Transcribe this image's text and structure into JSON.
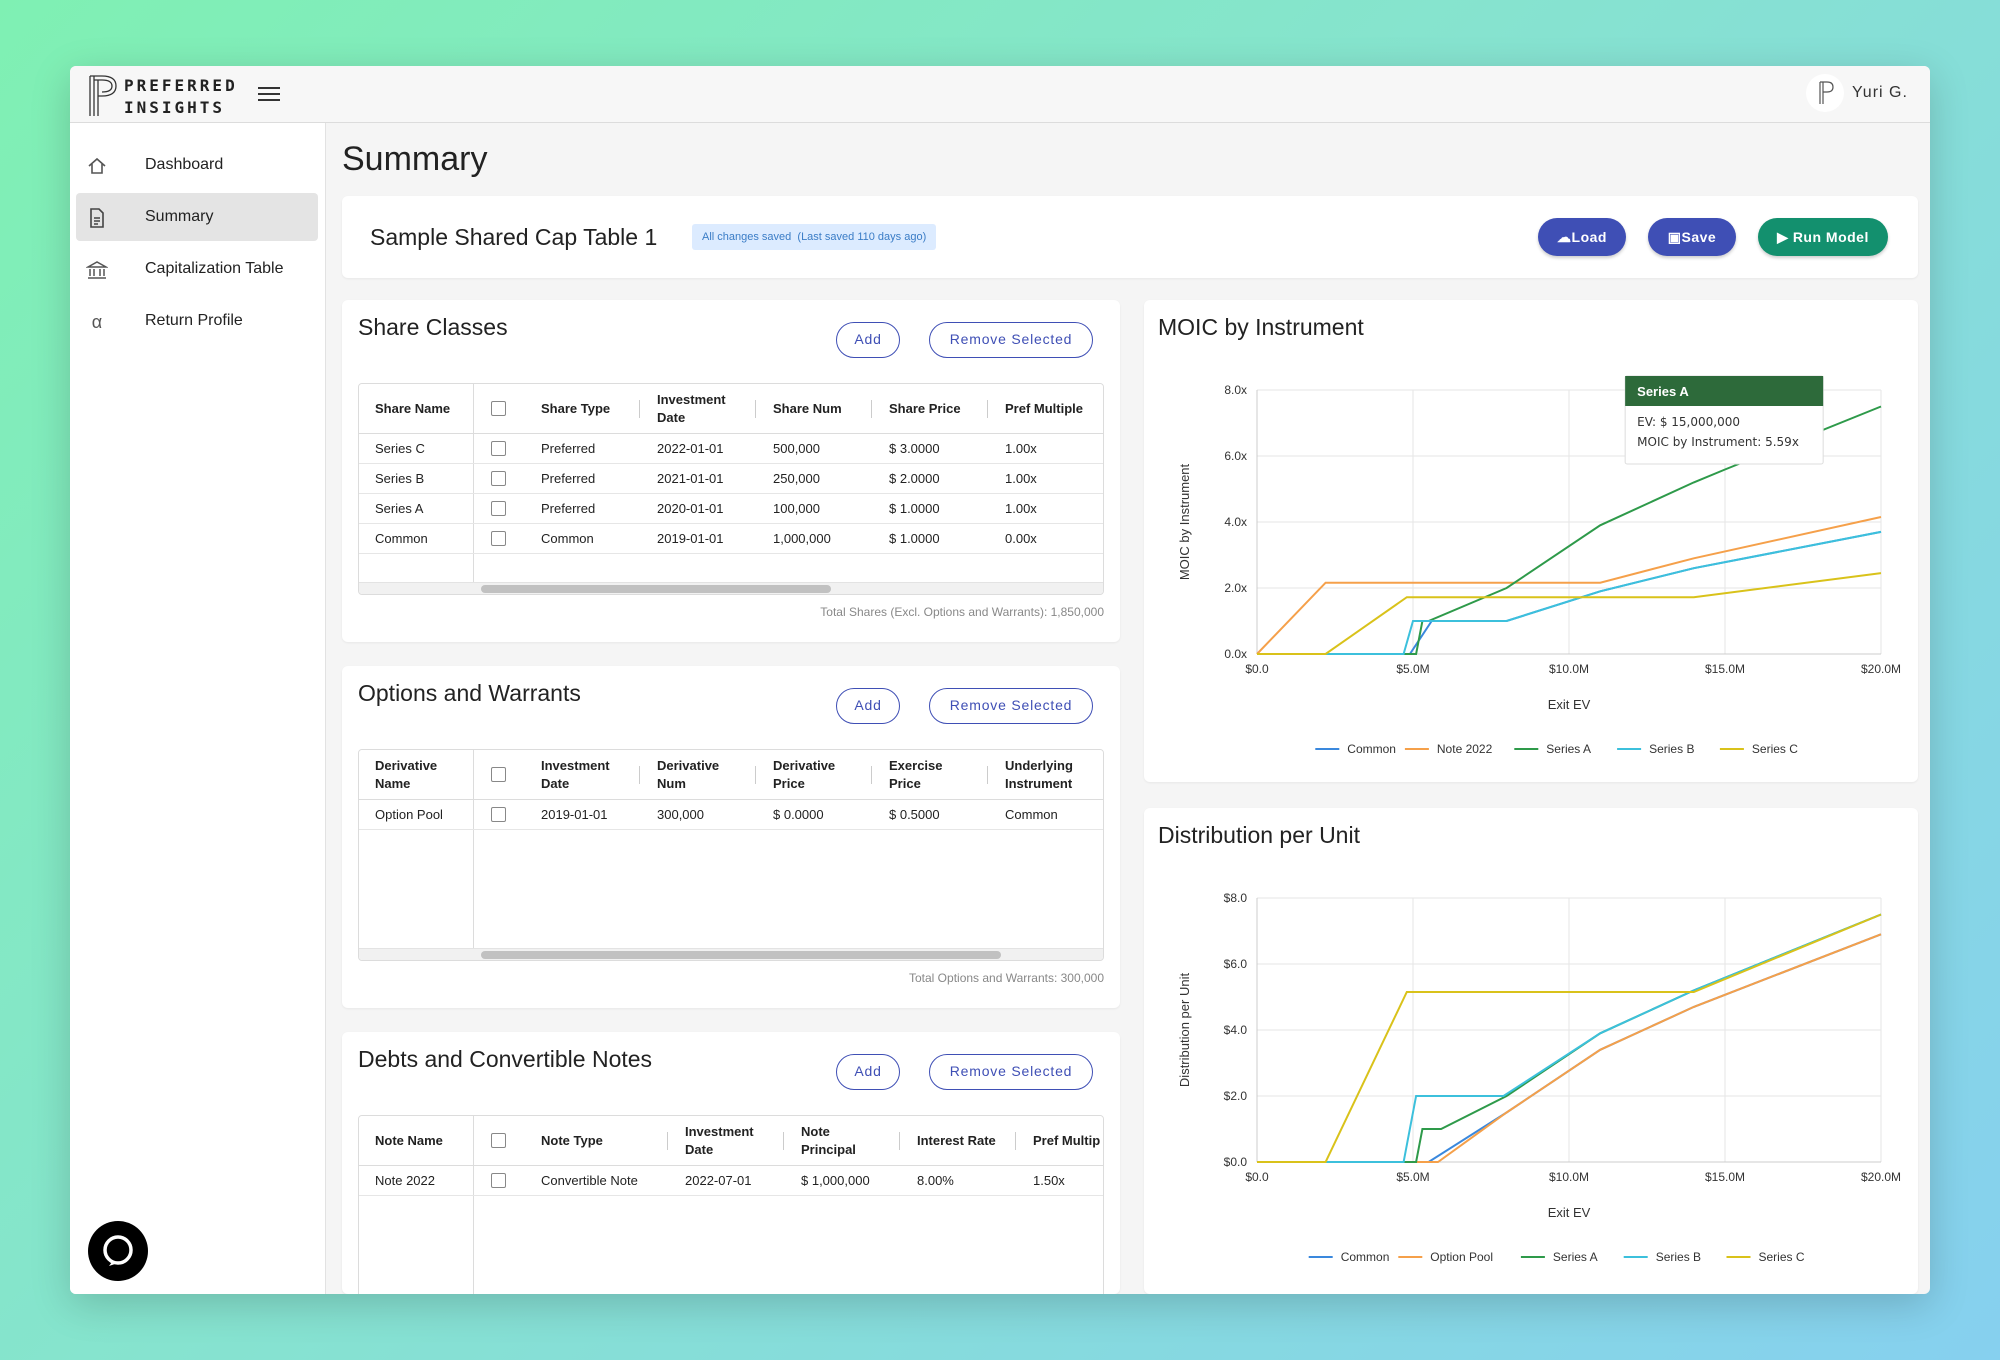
{
  "brand": {
    "line1": "PREFERRED",
    "line2": "INSIGHTS"
  },
  "user": {
    "name": "Yuri G."
  },
  "sidebar": {
    "items": [
      {
        "label": "Dashboard",
        "icon": "home-icon"
      },
      {
        "label": "Summary",
        "icon": "document-icon",
        "active": true
      },
      {
        "label": "Capitalization Table",
        "icon": "bank-icon"
      },
      {
        "label": "Return Profile",
        "icon": "alpha-icon"
      }
    ]
  },
  "page": {
    "title": "Summary"
  },
  "header": {
    "doc_name": "Sample Shared Cap Table 1",
    "save_status": "All changes saved",
    "last_saved": "(Last saved 110 days ago)",
    "load_label": "Load",
    "save_label": "Save",
    "run_label": "Run Model"
  },
  "share_classes": {
    "title": "Share Classes",
    "add_label": "Add",
    "remove_label": "Remove Selected",
    "columns": [
      "Share Name",
      "Share Type",
      "Investment Date",
      "Share Num",
      "Share Price",
      "Pref Multiple"
    ],
    "rows": [
      [
        "Series C",
        "Preferred",
        "2022-01-01",
        "500,000",
        "$ 3.0000",
        "1.00x"
      ],
      [
        "Series B",
        "Preferred",
        "2021-01-01",
        "250,000",
        "$ 2.0000",
        "1.00x"
      ],
      [
        "Series A",
        "Preferred",
        "2020-01-01",
        "100,000",
        "$ 1.0000",
        "1.00x"
      ],
      [
        "Common",
        "Common",
        "2019-01-01",
        "1,000,000",
        "$ 1.0000",
        "0.00x"
      ]
    ],
    "footnote": "Total Shares (Excl. Options and Warrants): 1,850,000"
  },
  "options": {
    "title": "Options and Warrants",
    "add_label": "Add",
    "remove_label": "Remove Selected",
    "columns": [
      "Derivative Name",
      "Investment Date",
      "Derivative Num",
      "Derivative Price",
      "Exercise Price",
      "Underlying Instrument"
    ],
    "rows": [
      [
        "Option Pool",
        "2019-01-01",
        "300,000",
        "$ 0.0000",
        "$ 0.5000",
        "Common"
      ]
    ],
    "footnote": "Total Options and Warrants: 300,000"
  },
  "debts": {
    "title": "Debts and Convertible Notes",
    "add_label": "Add",
    "remove_label": "Remove Selected",
    "columns": [
      "Note Name",
      "Note Type",
      "Investment Date",
      "Note Principal",
      "Interest Rate",
      "Pref Multip"
    ],
    "rows": [
      [
        "Note 2022",
        "Convertible Note",
        "2022-07-01",
        "$ 1,000,000",
        "8.00%",
        "1.50x"
      ]
    ]
  },
  "colors": {
    "primary": "#3f4fb5",
    "run": "#13906e",
    "common": "#3a88dd",
    "orange": "#f5a04a",
    "green": "#2e9a4a",
    "cyan": "#3cc0dc",
    "yellow": "#d9c21a",
    "tooltip_header": "#2d6a3a"
  },
  "chart_data": [
    {
      "type": "line",
      "title": "MOIC by Instrument",
      "xlabel": "Exit EV",
      "ylabel": "MOIC by Instrument",
      "xlim": [
        0,
        20
      ],
      "ylim": [
        0,
        8
      ],
      "x_ticks": [
        "$0.0",
        "$5.0M",
        "$10.0M",
        "$15.0M",
        "$20.0M"
      ],
      "y_ticks": [
        "0.0x",
        "2.0x",
        "4.0x",
        "6.0x",
        "8.0x"
      ],
      "grid": true,
      "legend": "bottom",
      "series": [
        {
          "name": "Common",
          "color": "#3a88dd",
          "points": [
            [
              0,
              0
            ],
            [
              4.9,
              0
            ],
            [
              5.6,
              1.0
            ],
            [
              8,
              1.0
            ],
            [
              11,
              1.9
            ],
            [
              14,
              2.6
            ],
            [
              20,
              3.7
            ]
          ]
        },
        {
          "name": "Note 2022",
          "color": "#f5a04a",
          "points": [
            [
              0,
              0
            ],
            [
              2.2,
              2.16
            ],
            [
              11,
              2.16
            ],
            [
              14,
              2.9
            ],
            [
              20,
              4.15
            ]
          ]
        },
        {
          "name": "Series A",
          "color": "#2e9a4a",
          "points": [
            [
              0,
              0
            ],
            [
              5.1,
              0
            ],
            [
              5.3,
              1.0
            ],
            [
              5.5,
              1.0
            ],
            [
              8,
              2.0
            ],
            [
              11,
              3.9
            ],
            [
              14,
              5.2
            ],
            [
              15,
              5.59
            ],
            [
              20,
              7.5
            ]
          ]
        },
        {
          "name": "Series B",
          "color": "#3cc0dc",
          "points": [
            [
              0,
              0
            ],
            [
              4.7,
              0
            ],
            [
              5.0,
              1.0
            ],
            [
              8,
              1.0
            ],
            [
              11,
              1.9
            ],
            [
              14,
              2.6
            ],
            [
              20,
              3.7
            ]
          ]
        },
        {
          "name": "Series C",
          "color": "#d9c21a",
          "points": [
            [
              0,
              0
            ],
            [
              2.2,
              0
            ],
            [
              4.8,
              1.72
            ],
            [
              14,
              1.72
            ],
            [
              20,
              2.45
            ]
          ]
        }
      ],
      "tooltip": {
        "title": "Series A",
        "line1": "EV: $ 15,000,000",
        "line2": "MOIC by Instrument: 5.59x"
      }
    },
    {
      "type": "line",
      "title": "Distribution per Unit",
      "xlabel": "Exit EV",
      "ylabel": "Distribution per Unit",
      "xlim": [
        0,
        20
      ],
      "ylim": [
        0,
        8
      ],
      "x_ticks": [
        "$0.0",
        "$5.0M",
        "$10.0M",
        "$15.0M",
        "$20.0M"
      ],
      "y_ticks": [
        "$0.0",
        "$2.0",
        "$4.0",
        "$6.0",
        "$8.0"
      ],
      "grid": true,
      "legend": "bottom",
      "series": [
        {
          "name": "Common",
          "color": "#3a88dd",
          "points": [
            [
              0,
              0
            ],
            [
              5.5,
              0
            ],
            [
              8,
              1.5
            ],
            [
              11,
              3.4
            ],
            [
              14,
              4.7
            ],
            [
              20,
              6.9
            ]
          ]
        },
        {
          "name": "Option Pool",
          "color": "#f5a04a",
          "points": [
            [
              0,
              0
            ],
            [
              5.8,
              0
            ],
            [
              8,
              1.5
            ],
            [
              11,
              3.4
            ],
            [
              14,
              4.7
            ],
            [
              20,
              6.9
            ]
          ]
        },
        {
          "name": "Series A",
          "color": "#2e9a4a",
          "points": [
            [
              0,
              0
            ],
            [
              5.1,
              0
            ],
            [
              5.3,
              1.0
            ],
            [
              5.9,
              1.0
            ],
            [
              8,
              2.0
            ],
            [
              11,
              3.9
            ],
            [
              14,
              5.2
            ],
            [
              20,
              7.5
            ]
          ]
        },
        {
          "name": "Series B",
          "color": "#3cc0dc",
          "points": [
            [
              0,
              0
            ],
            [
              4.7,
              0
            ],
            [
              5.1,
              2.0
            ],
            [
              7.9,
              2.0
            ],
            [
              11,
              3.9
            ],
            [
              14,
              5.2
            ],
            [
              20,
              7.5
            ]
          ]
        },
        {
          "name": "Series C",
          "color": "#d9c21a",
          "points": [
            [
              0,
              0
            ],
            [
              2.2,
              0
            ],
            [
              4.8,
              5.15
            ],
            [
              14,
              5.15
            ],
            [
              20,
              7.5
            ]
          ]
        }
      ]
    }
  ]
}
